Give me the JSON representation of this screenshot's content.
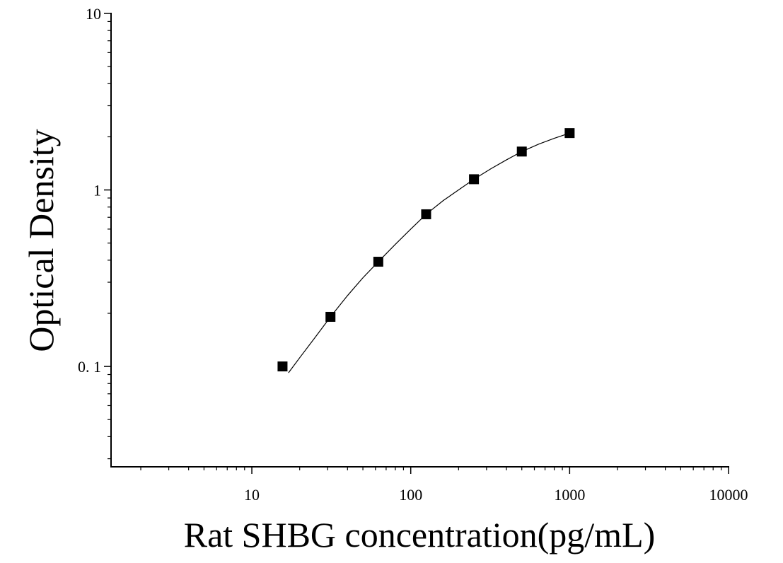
{
  "chart_data": {
    "type": "scatter",
    "xlabel": "Rat SHBG concentration(pg/mL)",
    "ylabel": "Optical Density",
    "x_scale": "log",
    "y_scale": "log",
    "xlim": [
      1.3,
      10000
    ],
    "ylim": [
      0.027,
      10
    ],
    "x_ticks": [
      10,
      100,
      1000,
      10000
    ],
    "x_tick_labels": [
      "10",
      "100",
      "1000",
      "10000"
    ],
    "y_ticks": [
      0.1,
      1,
      10
    ],
    "y_tick_labels": [
      "0. 1",
      "1",
      "10"
    ],
    "grid": false,
    "series": [
      {
        "marker": "square",
        "color": "#000000",
        "points": [
          {
            "x": 15.6,
            "y": 0.1
          },
          {
            "x": 31.25,
            "y": 0.191
          },
          {
            "x": 62.5,
            "y": 0.392
          },
          {
            "x": 125,
            "y": 0.728
          },
          {
            "x": 250,
            "y": 1.15
          },
          {
            "x": 500,
            "y": 1.65
          },
          {
            "x": 1000,
            "y": 2.1
          }
        ]
      }
    ],
    "fit_curve": {
      "color": "#000000",
      "points": [
        {
          "x": 17,
          "y": 0.092
        },
        {
          "x": 20,
          "y": 0.112
        },
        {
          "x": 25,
          "y": 0.146
        },
        {
          "x": 31.25,
          "y": 0.191
        },
        {
          "x": 40,
          "y": 0.252
        },
        {
          "x": 50,
          "y": 0.318
        },
        {
          "x": 62.5,
          "y": 0.392
        },
        {
          "x": 80,
          "y": 0.492
        },
        {
          "x": 100,
          "y": 0.6
        },
        {
          "x": 125,
          "y": 0.728
        },
        {
          "x": 160,
          "y": 0.87
        },
        {
          "x": 200,
          "y": 1.0
        },
        {
          "x": 250,
          "y": 1.15
        },
        {
          "x": 320,
          "y": 1.32
        },
        {
          "x": 400,
          "y": 1.48
        },
        {
          "x": 500,
          "y": 1.65
        },
        {
          "x": 640,
          "y": 1.82
        },
        {
          "x": 800,
          "y": 1.96
        },
        {
          "x": 1000,
          "y": 2.1
        }
      ]
    }
  }
}
